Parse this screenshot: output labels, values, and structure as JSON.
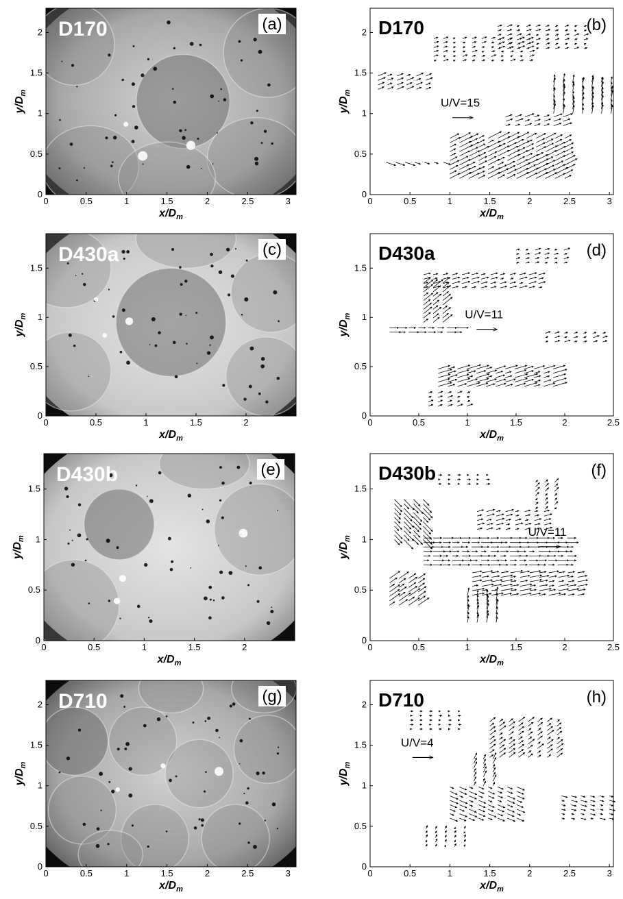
{
  "figure": {
    "panels": [
      {
        "id": "a",
        "type": "image",
        "tag": "(a)",
        "sample": "D170",
        "xlabel": "x/D",
        "xsub": "m",
        "ylabel": "y/D",
        "ysub": "m",
        "xlim": [
          0,
          3.1
        ],
        "ylim": [
          0,
          2.3
        ],
        "xticks": [
          "0",
          "0.5",
          "1",
          "1.5",
          "2",
          "2.5",
          "3"
        ],
        "yticks": [
          "0",
          "0.5",
          "1",
          "1.5",
          "2"
        ],
        "circles": [
          [
            1.7,
            1.15,
            0.58,
            0.58
          ],
          [
            0.35,
            1.85,
            0.5,
            0.5
          ],
          [
            2.75,
            1.75,
            0.55,
            0.55
          ],
          [
            0.55,
            0.35,
            0.6,
            0.5
          ],
          [
            2.6,
            0.45,
            0.6,
            0.5
          ],
          [
            1.5,
            0.2,
            0.6,
            0.45
          ]
        ]
      },
      {
        "id": "b",
        "type": "vector",
        "tag": "(b)",
        "sample": "D170",
        "xlabel": "x/D",
        "xsub": "m",
        "ylabel": "y/D",
        "ysub": "m",
        "xlim": [
          0,
          3.05
        ],
        "ylim": [
          0,
          2.3
        ],
        "xticks": [
          "0",
          "0.5",
          "1",
          "1.5",
          "2",
          "2.5",
          "3"
        ],
        "yticks": [
          "0",
          "0.5",
          "1",
          "1.5",
          "2"
        ],
        "ref_label": "U/V=15",
        "ref_pos": [
          1.1,
          1.0
        ],
        "regions": [
          [
            0.1,
            1.5,
            0.8,
            1.3,
            0.25,
            0.1
          ],
          [
            0.8,
            1.65,
            2.1,
            1.95,
            0.15,
            0.05
          ],
          [
            1.6,
            2.1,
            2.7,
            1.8,
            0.15,
            0.05
          ],
          [
            2.3,
            1.0,
            3.05,
            1.4,
            0.05,
            0.3
          ],
          [
            0.2,
            0.45,
            1.0,
            0.4,
            0.3,
            -0.1
          ],
          [
            1.0,
            0.2,
            2.5,
            0.7,
            0.4,
            0.2
          ],
          [
            1.7,
            0.85,
            2.5,
            1.0,
            0.3,
            0.1
          ]
        ]
      },
      {
        "id": "c",
        "type": "image",
        "tag": "(c)",
        "sample": "D430a",
        "xlabel": "x/D",
        "xsub": "m",
        "ylabel": "y/D",
        "ysub": "m",
        "xlim": [
          0,
          2.5
        ],
        "ylim": [
          0,
          1.85
        ],
        "xticks": [
          "0",
          "0.5",
          "1",
          "1.5",
          "2"
        ],
        "yticks": [
          "0",
          "0.5",
          "1",
          "1.5"
        ],
        "circles": [
          [
            1.25,
            0.95,
            0.55,
            0.55
          ],
          [
            0.2,
            1.5,
            0.45,
            0.4
          ],
          [
            2.25,
            1.25,
            0.4,
            0.4
          ],
          [
            0.25,
            0.45,
            0.4,
            0.4
          ],
          [
            2.2,
            0.4,
            0.4,
            0.4
          ],
          [
            1.4,
            1.8,
            0.5,
            0.3
          ]
        ]
      },
      {
        "id": "d",
        "type": "vector",
        "tag": "(d)",
        "sample": "D430a",
        "xlabel": "x/D",
        "xsub": "m",
        "ylabel": "y/D",
        "ysub": "m",
        "xlim": [
          0,
          2.5
        ],
        "ylim": [
          0,
          1.85
        ],
        "xticks": [
          "0",
          "0.5",
          "1",
          "1.5",
          "2",
          "2.5"
        ],
        "yticks": [
          "0",
          "0.5",
          "1",
          "1.5"
        ],
        "ref_label": "U/V=11",
        "ref_pos": [
          1.15,
          0.92
        ],
        "regions": [
          [
            0.55,
            1.3,
            1.8,
            1.45,
            0.2,
            0.05
          ],
          [
            1.5,
            1.55,
            2.0,
            1.7,
            0.15,
            0.05
          ],
          [
            0.2,
            0.85,
            0.9,
            0.9,
            0.3,
            0.0
          ],
          [
            1.8,
            0.75,
            2.45,
            0.85,
            0.15,
            0.05
          ],
          [
            0.7,
            0.3,
            1.95,
            0.5,
            0.35,
            0.1
          ],
          [
            0.6,
            0.1,
            1.0,
            0.25,
            0.15,
            0.05
          ],
          [
            0.55,
            0.95,
            0.8,
            1.35,
            0.25,
            0.2
          ]
        ]
      },
      {
        "id": "e",
        "type": "image",
        "tag": "(e)",
        "sample": "D430b",
        "xlabel": "x/D",
        "xsub": "m",
        "ylabel": "y/D",
        "ysub": "m",
        "xlim": [
          0,
          2.5
        ],
        "ylim": [
          0,
          1.85
        ],
        "xticks": [
          "0",
          "0.5",
          "1",
          "1.5",
          "2"
        ],
        "yticks": [
          "0",
          "0.5",
          "1",
          "1.5"
        ],
        "circles": [
          [
            0.75,
            1.15,
            0.35,
            0.35
          ],
          [
            2.15,
            1.1,
            0.45,
            0.45
          ],
          [
            0.3,
            0.35,
            0.45,
            0.45
          ],
          [
            1.6,
            1.75,
            0.45,
            0.25
          ]
        ]
      },
      {
        "id": "f",
        "type": "vector",
        "tag": "(f)",
        "sample": "D430b",
        "xlabel": "x/D",
        "xsub": "m",
        "ylabel": "y/D",
        "ysub": "m",
        "xlim": [
          0,
          2.5
        ],
        "ylim": [
          0,
          1.85
        ],
        "xticks": [
          "0",
          "0.5",
          "1",
          "1.5",
          "2",
          "2.5"
        ],
        "yticks": [
          "0",
          "0.5",
          "1",
          "1.5"
        ],
        "ref_label": "U/V=11",
        "ref_pos": [
          1.8,
          0.97
        ],
        "regions": [
          [
            0.55,
            0.75,
            2.1,
            1.05,
            0.3,
            0.0
          ],
          [
            0.25,
            1.0,
            0.6,
            1.4,
            0.25,
            -0.25
          ],
          [
            1.1,
            1.1,
            1.8,
            1.3,
            0.2,
            0.05
          ],
          [
            1.7,
            1.3,
            1.95,
            1.6,
            0.1,
            0.1
          ],
          [
            0.2,
            0.35,
            0.55,
            0.65,
            0.3,
            0.2
          ],
          [
            1.05,
            0.45,
            2.15,
            0.7,
            0.3,
            0.05
          ],
          [
            1.0,
            0.18,
            1.35,
            0.45,
            0.05,
            0.25
          ],
          [
            0.7,
            1.55,
            1.2,
            1.65,
            0.1,
            0.0
          ]
        ]
      },
      {
        "id": "g",
        "type": "image",
        "tag": "(g)",
        "sample": "D710",
        "xlabel": "x/D",
        "xsub": "m",
        "ylabel": "y/D",
        "ysub": "m",
        "xlim": [
          0,
          3.1
        ],
        "ylim": [
          0,
          2.3
        ],
        "xticks": [
          "0",
          "0.5",
          "1",
          "1.5",
          "2",
          "2.5",
          "3"
        ],
        "yticks": [
          "0",
          "0.5",
          "1",
          "1.5",
          "2"
        ],
        "circles": [
          [
            0.35,
            1.55,
            0.42,
            0.42
          ],
          [
            1.2,
            1.55,
            0.42,
            0.42
          ],
          [
            2.75,
            1.45,
            0.42,
            0.42
          ],
          [
            0.45,
            0.7,
            0.42,
            0.42
          ],
          [
            1.9,
            1.15,
            0.42,
            0.42
          ],
          [
            1.35,
            0.35,
            0.42,
            0.42
          ],
          [
            2.35,
            0.35,
            0.42,
            0.42
          ],
          [
            0.8,
            0.15,
            0.4,
            0.3
          ],
          [
            1.55,
            2.2,
            0.4,
            0.3
          ],
          [
            2.7,
            2.2,
            0.4,
            0.3
          ]
        ]
      },
      {
        "id": "h",
        "type": "vector",
        "tag": "(h)",
        "sample": "D710",
        "xlabel": "x/D",
        "xsub": "m",
        "ylabel": "y/D",
        "ysub": "m",
        "xlim": [
          0,
          3.05
        ],
        "ylim": [
          0,
          2.3
        ],
        "xticks": [
          "0",
          "0.5",
          "1",
          "1.5",
          "2",
          "2.5",
          "3"
        ],
        "yticks": [
          "0",
          "0.5",
          "1",
          "1.5",
          "2"
        ],
        "ref_label": "U/V=4",
        "ref_pos": [
          0.6,
          1.4
        ],
        "regions": [
          [
            1.5,
            1.35,
            2.4,
            1.8,
            0.2,
            0.15
          ],
          [
            1.0,
            0.6,
            1.9,
            1.0,
            0.25,
            -0.1
          ],
          [
            2.4,
            0.6,
            3.05,
            0.9,
            0.2,
            -0.05
          ],
          [
            1.3,
            1.0,
            1.6,
            1.35,
            0.1,
            0.2
          ],
          [
            0.7,
            0.25,
            1.2,
            0.5,
            0.05,
            0.1
          ],
          [
            0.5,
            1.7,
            1.1,
            1.95,
            0.1,
            0.0
          ]
        ]
      }
    ]
  }
}
